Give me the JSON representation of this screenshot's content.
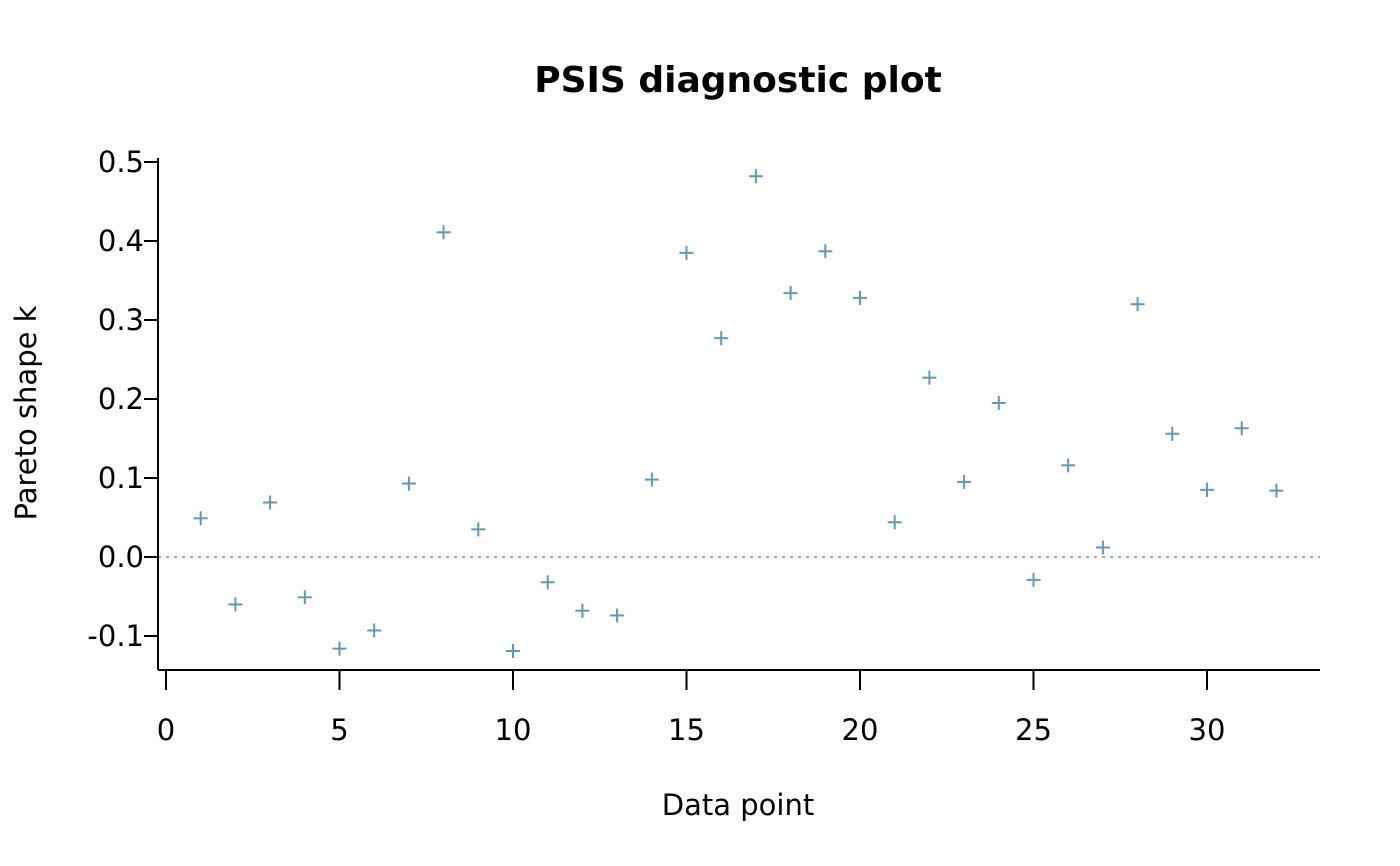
{
  "chart_data": {
    "type": "scatter",
    "title": "PSIS diagnostic plot",
    "xlabel": "Data point",
    "ylabel": "Pareto shape k",
    "xlim": [
      0,
      33
    ],
    "ylim": [
      -0.145,
      0.505
    ],
    "x_ticks": [
      0,
      5,
      10,
      15,
      20,
      25,
      30
    ],
    "x_tick_labels": [
      "0",
      "5",
      "10",
      "15",
      "20",
      "25",
      "30"
    ],
    "y_ticks": [
      -0.1,
      0.0,
      0.1,
      0.2,
      0.3,
      0.4,
      0.5
    ],
    "y_tick_labels": [
      "-0.1",
      "0.0",
      "0.1",
      "0.2",
      "0.3",
      "0.4",
      "0.5"
    ],
    "reference_line_y": 0.0,
    "marker": "+",
    "point_color": "#6497b1",
    "reference_line_color": "#aaaaaa",
    "grid": false,
    "x": [
      1,
      2,
      3,
      4,
      5,
      6,
      7,
      8,
      9,
      10,
      11,
      12,
      13,
      14,
      15,
      16,
      17,
      18,
      19,
      20,
      21,
      22,
      23,
      24,
      25,
      26,
      27,
      28,
      29,
      30,
      31,
      32
    ],
    "y": [
      0.049,
      -0.06,
      0.069,
      -0.051,
      -0.116,
      -0.093,
      0.093,
      0.411,
      0.035,
      -0.119,
      -0.032,
      -0.068,
      -0.074,
      0.098,
      0.385,
      0.277,
      0.482,
      0.334,
      0.387,
      0.328,
      0.044,
      0.227,
      0.095,
      0.195,
      -0.029,
      0.116,
      0.012,
      0.32,
      0.156,
      0.085,
      0.163,
      0.084
    ]
  }
}
